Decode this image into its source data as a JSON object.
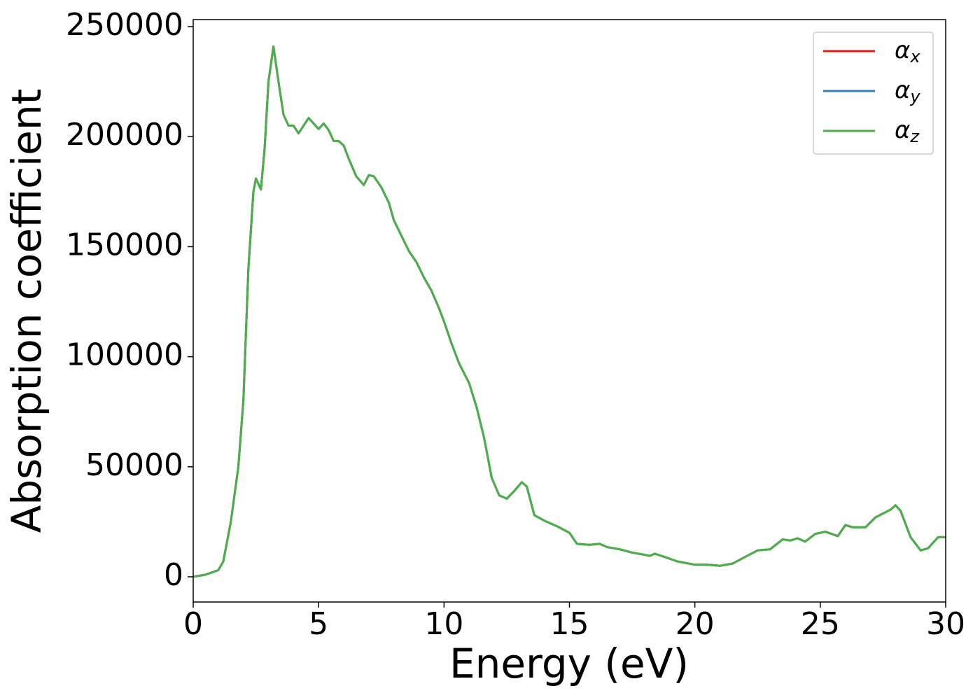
{
  "chart_data": {
    "type": "line",
    "xlabel": "Energy (eV)",
    "ylabel": "Absorption coefficient",
    "x": [
      0,
      0.5,
      1.0,
      1.2,
      1.5,
      1.8,
      2.0,
      2.2,
      2.4,
      2.5,
      2.7,
      2.85,
      3.0,
      3.2,
      3.4,
      3.6,
      3.8,
      4.0,
      4.2,
      4.4,
      4.6,
      4.8,
      5.0,
      5.2,
      5.4,
      5.6,
      5.8,
      6.0,
      6.2,
      6.5,
      6.8,
      7.0,
      7.2,
      7.5,
      7.8,
      8.0,
      8.3,
      8.6,
      8.9,
      9.2,
      9.5,
      9.8,
      10.0,
      10.3,
      10.6,
      11.0,
      11.3,
      11.6,
      11.9,
      12.2,
      12.5,
      12.8,
      13.1,
      13.3,
      13.6,
      14.0,
      14.5,
      15.0,
      15.3,
      15.8,
      16.2,
      16.5,
      17.0,
      17.5,
      18.0,
      18.2,
      18.4,
      18.8,
      19.3,
      20.0,
      20.5,
      21.0,
      21.5,
      22.0,
      22.5,
      23.0,
      23.5,
      23.8,
      24.1,
      24.4,
      24.8,
      25.2,
      25.7,
      26.0,
      26.3,
      26.8,
      27.2,
      27.8,
      28.0,
      28.2,
      28.6,
      29.0,
      29.3,
      29.7,
      30.0
    ],
    "series": [
      {
        "name": "αx",
        "color": "#e41a1c",
        "values": [
          0,
          1000,
          3000,
          7000,
          25000,
          50000,
          80000,
          140000,
          175000,
          181000,
          176000,
          195000,
          225000,
          241000,
          225000,
          210000,
          205000,
          205000,
          201500,
          205000,
          208500,
          206000,
          203500,
          206000,
          203000,
          198000,
          198000,
          196000,
          190000,
          182000,
          178000,
          182500,
          182000,
          177000,
          170000,
          162000,
          155000,
          148000,
          143000,
          136000,
          130000,
          122000,
          116000,
          106000,
          97000,
          88000,
          77000,
          63000,
          45000,
          37000,
          35500,
          39000,
          43000,
          41000,
          28000,
          25500,
          23000,
          20000,
          15000,
          14500,
          15000,
          13500,
          12500,
          11000,
          10000,
          9500,
          10500,
          9000,
          7000,
          5500,
          5500,
          5000,
          6000,
          9000,
          12000,
          12500,
          17000,
          16500,
          17500,
          16000,
          19500,
          20500,
          18500,
          23500,
          22500,
          22500,
          27000,
          30500,
          32500,
          30000,
          18000,
          12000,
          13000,
          18000,
          18000
        ]
      },
      {
        "name": "αy",
        "color": "#377eb8",
        "values": [
          0,
          1000,
          3000,
          7000,
          25000,
          50000,
          80000,
          140000,
          175000,
          181000,
          176000,
          195000,
          225000,
          241000,
          225000,
          210000,
          205000,
          205000,
          201500,
          205000,
          208500,
          206000,
          203500,
          206000,
          203000,
          198000,
          198000,
          196000,
          190000,
          182000,
          178000,
          182500,
          182000,
          177000,
          170000,
          162000,
          155000,
          148000,
          143000,
          136000,
          130000,
          122000,
          116000,
          106000,
          97000,
          88000,
          77000,
          63000,
          45000,
          37000,
          35500,
          39000,
          43000,
          41000,
          28000,
          25500,
          23000,
          20000,
          15000,
          14500,
          15000,
          13500,
          12500,
          11000,
          10000,
          9500,
          10500,
          9000,
          7000,
          5500,
          5500,
          5000,
          6000,
          9000,
          12000,
          12500,
          17000,
          16500,
          17500,
          16000,
          19500,
          20500,
          18500,
          23500,
          22500,
          22500,
          27000,
          30500,
          32500,
          30000,
          18000,
          12000,
          13000,
          18000,
          18000
        ]
      },
      {
        "name": "αz",
        "color": "#4daf4a",
        "values": [
          0,
          1000,
          3000,
          7000,
          25000,
          50000,
          80000,
          140000,
          175000,
          181000,
          176000,
          195000,
          225000,
          241000,
          225000,
          210000,
          205000,
          205000,
          201500,
          205000,
          208500,
          206000,
          203500,
          206000,
          203000,
          198000,
          198000,
          196000,
          190000,
          182000,
          178000,
          182500,
          182000,
          177000,
          170000,
          162000,
          155000,
          148000,
          143000,
          136000,
          130000,
          122000,
          116000,
          106000,
          97000,
          88000,
          77000,
          63000,
          45000,
          37000,
          35500,
          39000,
          43000,
          41000,
          28000,
          25500,
          23000,
          20000,
          15000,
          14500,
          15000,
          13500,
          12500,
          11000,
          10000,
          9500,
          10500,
          9000,
          7000,
          5500,
          5500,
          5000,
          6000,
          9000,
          12000,
          12500,
          17000,
          16500,
          17500,
          16000,
          19500,
          20500,
          18500,
          23500,
          22500,
          22500,
          27000,
          30500,
          32500,
          30000,
          18000,
          12000,
          13000,
          18000,
          18000
        ]
      }
    ],
    "xlim": [
      0,
      30
    ],
    "xticks": [
      0,
      5,
      10,
      15,
      20,
      25,
      30
    ],
    "ylim": [
      -11450,
      253200
    ],
    "yticks": [
      0,
      50000,
      100000,
      150000,
      200000,
      250000
    ],
    "grid": false,
    "legend": "upper right"
  }
}
